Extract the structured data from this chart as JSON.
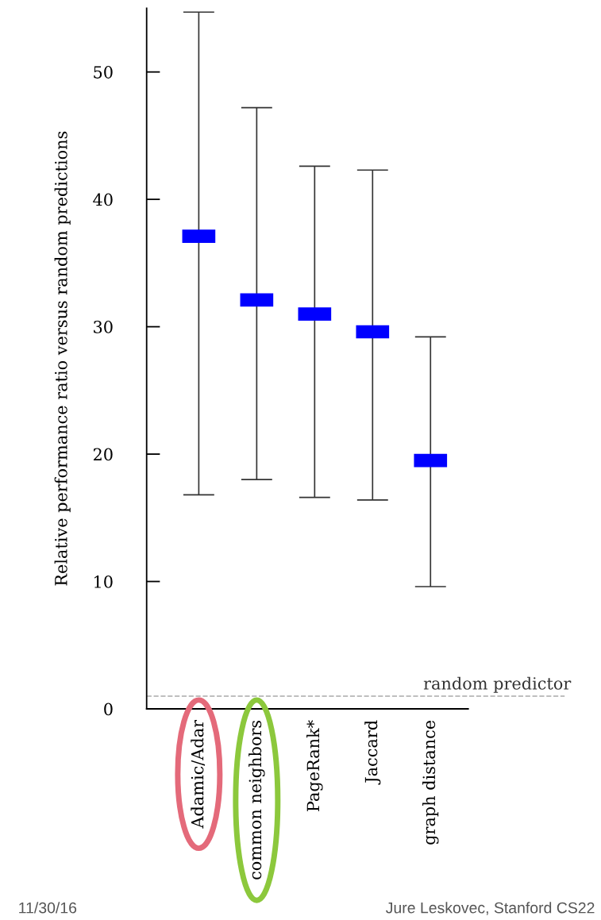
{
  "chart_data": {
    "type": "scatter",
    "ylabel": "Relative performance ratio versus random predictions",
    "categories": [
      "Adamic/Adar",
      "common neighbors",
      "PageRank*",
      "Jaccard",
      "graph distance"
    ],
    "values": [
      37.1,
      32.1,
      31.0,
      29.6,
      19.5
    ],
    "errors": [
      [
        16.8,
        54.7
      ],
      [
        18.0,
        47.2
      ],
      [
        16.6,
        42.6
      ],
      [
        16.4,
        42.3
      ],
      [
        9.6,
        29.2
      ]
    ],
    "color": "#0000ff",
    "marker": "square",
    "ylim": [
      0,
      55
    ],
    "yticks": [
      0,
      10,
      20,
      30,
      40,
      50
    ],
    "ref_lines": [
      {
        "axis": "y",
        "value": 1,
        "label": "random predictor",
        "color": "#aaaaaa",
        "line_style": "dashed"
      }
    ],
    "grid": false,
    "legend": false,
    "annotations": [
      "11/30/16",
      "Jure Leskovec, Stanford CS22"
    ]
  }
}
